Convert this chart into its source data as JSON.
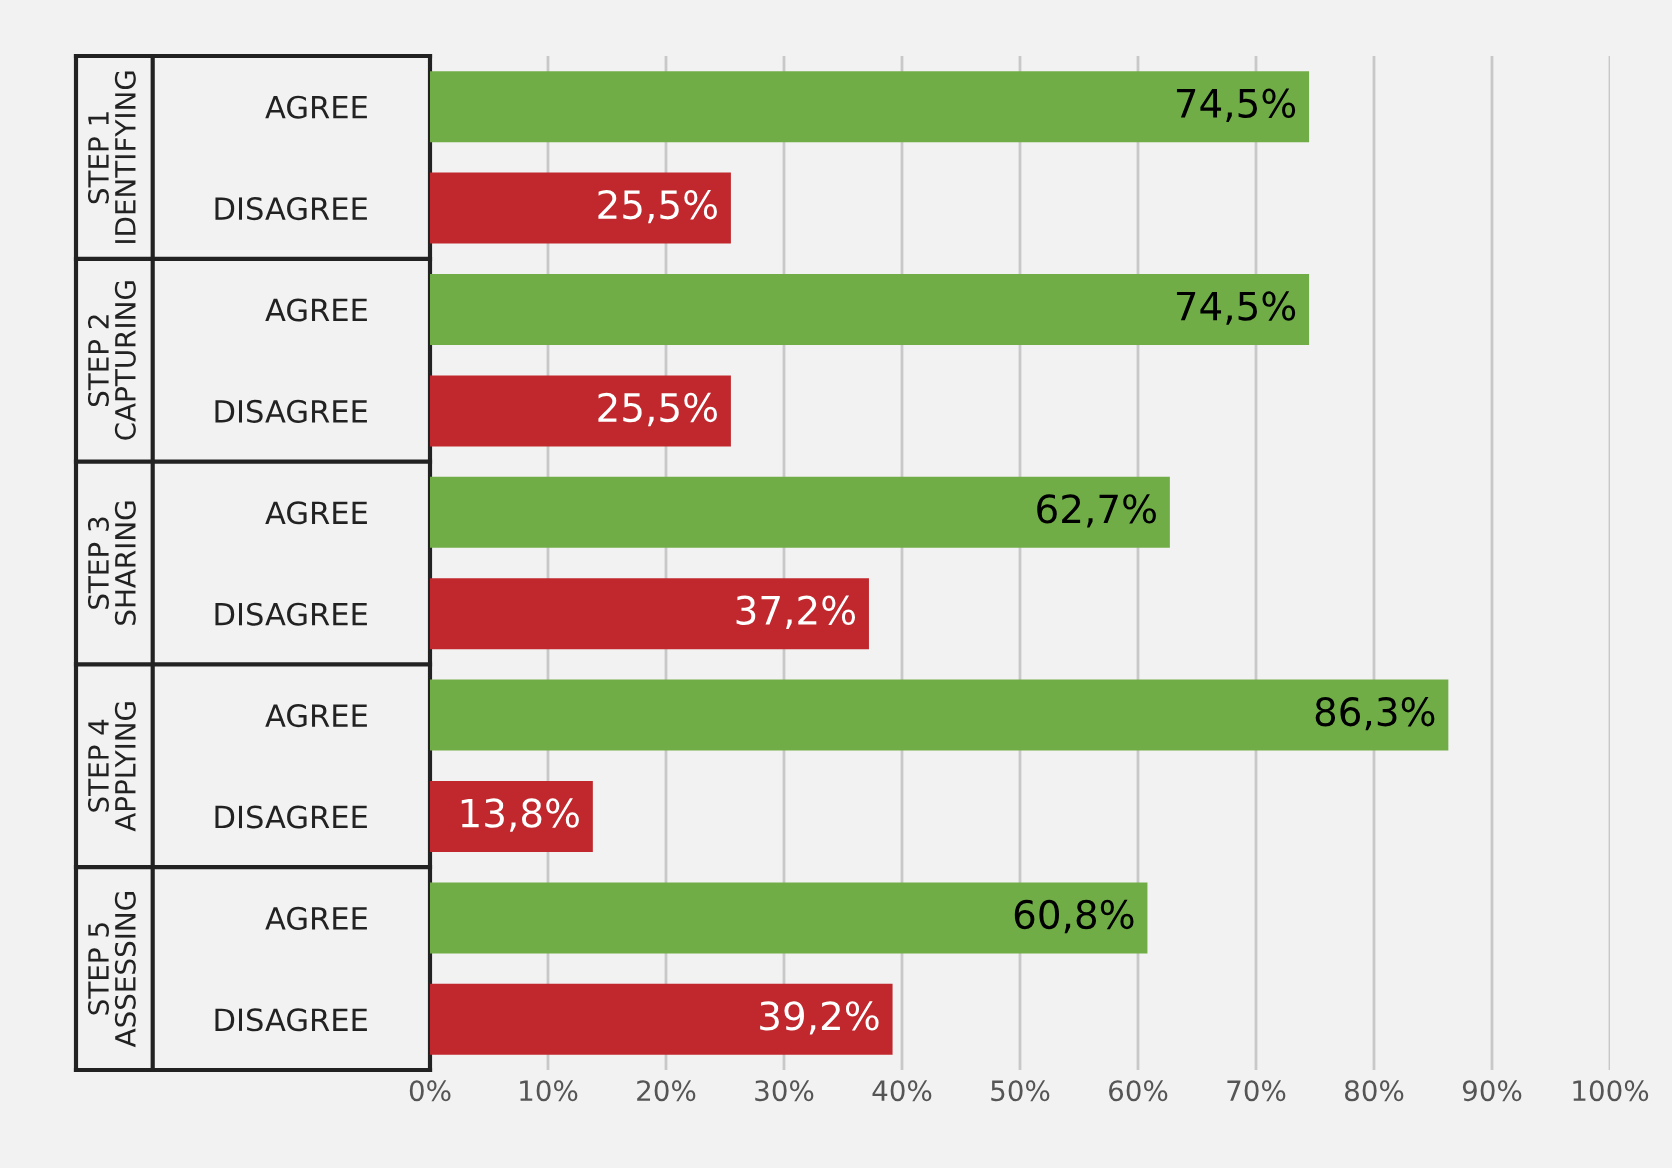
{
  "chart_data": {
    "type": "bar",
    "orientation": "horizontal",
    "categories": [
      "AGREE",
      "DISAGREE",
      "AGREE",
      "DISAGREE",
      "AGREE",
      "DISAGREE",
      "AGREE",
      "DISAGREE",
      "AGREE",
      "DISAGREE"
    ],
    "values": [
      74.5,
      25.5,
      74.5,
      25.5,
      62.7,
      37.2,
      86.3,
      13.8,
      60.8,
      39.2
    ],
    "colors": [
      "#70ad47",
      "#c0282d",
      "#70ad47",
      "#c0282d",
      "#70ad47",
      "#c0282d",
      "#70ad47",
      "#c0282d",
      "#70ad47",
      "#c0282d"
    ],
    "value_labels": [
      "74,5%",
      "25,5%",
      "74,5%",
      "25,5%",
      "62,7%",
      "37,2%",
      "86,3%",
      "13,8%",
      "60,8%",
      "39,2%"
    ],
    "xlim": [
      0,
      100
    ],
    "xticks": [
      {
        "value": 0,
        "label": "0%"
      },
      {
        "value": 10,
        "label": "10%"
      },
      {
        "value": 20,
        "label": "20%"
      },
      {
        "value": 30,
        "label": "30%"
      },
      {
        "value": 40,
        "label": "40%"
      },
      {
        "value": 50,
        "label": "50%"
      },
      {
        "value": 60,
        "label": "60%"
      },
      {
        "value": 70,
        "label": "70%"
      },
      {
        "value": 80,
        "label": "80%"
      },
      {
        "value": 90,
        "label": "90%"
      },
      {
        "value": 100,
        "label": "100%"
      }
    ],
    "grid": "x",
    "annotations": [
      "STEP 1\nIDENTIFYING",
      "STEP 2\nCAPTURING",
      "STEP 3\nSHARING",
      "STEP 4\nAPPLYING",
      "STEP 5\nASSESSING"
    ]
  }
}
